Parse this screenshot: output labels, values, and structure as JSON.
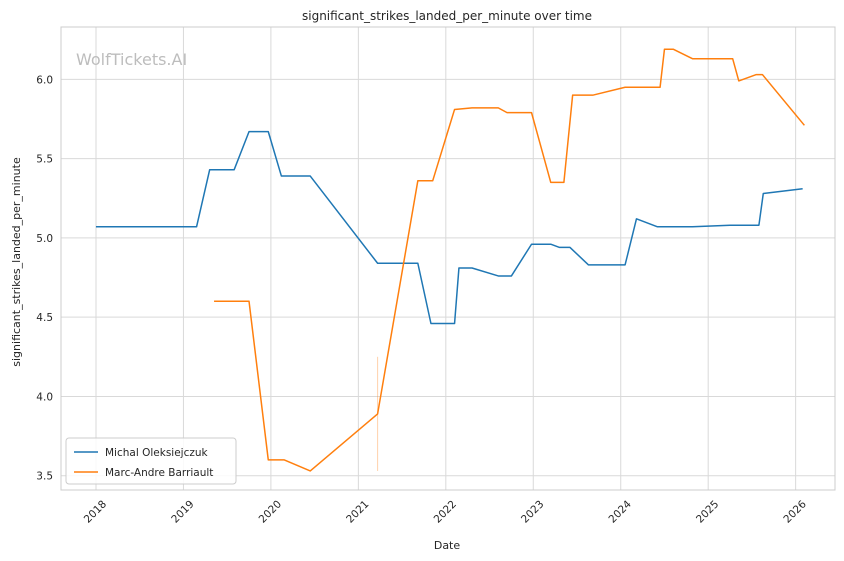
{
  "chart_data": {
    "type": "line",
    "title": "significant_strikes_landed_per_minute over time",
    "xlabel": "Date",
    "ylabel": "significant_strikes_landed_per_minute",
    "watermark": "WolfTickets.AI",
    "xlim": [
      2017.6,
      2026.45
    ],
    "ylim": [
      3.41,
      6.33
    ],
    "xticks": [
      2018,
      2019,
      2020,
      2021,
      2022,
      2023,
      2024,
      2025,
      2026
    ],
    "xtick_labels": [
      "2018",
      "2019",
      "2020",
      "2021",
      "2022",
      "2023",
      "2024",
      "2025",
      "2026"
    ],
    "yticks": [
      3.5,
      4.0,
      4.5,
      5.0,
      5.5,
      6.0
    ],
    "ytick_labels": [
      "3.5",
      "4.0",
      "4.5",
      "5.0",
      "5.5",
      "6.0"
    ],
    "grid": true,
    "legend_position": "lower-left",
    "series": [
      {
        "name": "Michal Oleksiejczuk",
        "color": "#1f77b4",
        "points": [
          [
            2018.0,
            5.07
          ],
          [
            2019.15,
            5.07
          ],
          [
            2019.3,
            5.43
          ],
          [
            2019.58,
            5.43
          ],
          [
            2019.75,
            5.67
          ],
          [
            2019.97,
            5.67
          ],
          [
            2020.12,
            5.39
          ],
          [
            2020.45,
            5.39
          ],
          [
            2021.22,
            4.84
          ],
          [
            2021.68,
            4.84
          ],
          [
            2021.83,
            4.46
          ],
          [
            2022.1,
            4.46
          ],
          [
            2022.15,
            4.81
          ],
          [
            2022.3,
            4.81
          ],
          [
            2022.6,
            4.76
          ],
          [
            2022.75,
            4.76
          ],
          [
            2022.98,
            4.96
          ],
          [
            2023.2,
            4.96
          ],
          [
            2023.3,
            4.94
          ],
          [
            2023.42,
            4.94
          ],
          [
            2023.63,
            4.83
          ],
          [
            2024.05,
            4.83
          ],
          [
            2024.18,
            5.12
          ],
          [
            2024.42,
            5.07
          ],
          [
            2024.82,
            5.07
          ],
          [
            2025.25,
            5.08
          ],
          [
            2025.58,
            5.08
          ],
          [
            2025.63,
            5.28
          ],
          [
            2026.08,
            5.31
          ]
        ]
      },
      {
        "name": "Marc-Andre Barriault",
        "color": "#ff7f0e",
        "points": [
          [
            2019.35,
            4.6
          ],
          [
            2019.75,
            4.6
          ],
          [
            2019.97,
            3.6
          ],
          [
            2020.15,
            3.6
          ],
          [
            2020.45,
            3.53
          ],
          [
            2021.22,
            3.89
          ],
          [
            2021.68,
            5.36
          ],
          [
            2021.85,
            5.36
          ],
          [
            2022.1,
            5.81
          ],
          [
            2022.3,
            5.82
          ],
          [
            2022.6,
            5.82
          ],
          [
            2022.7,
            5.79
          ],
          [
            2022.98,
            5.79
          ],
          [
            2023.2,
            5.35
          ],
          [
            2023.35,
            5.35
          ],
          [
            2023.45,
            5.9
          ],
          [
            2023.68,
            5.9
          ],
          [
            2024.05,
            5.95
          ],
          [
            2024.45,
            5.95
          ],
          [
            2024.5,
            6.19
          ],
          [
            2024.6,
            6.19
          ],
          [
            2024.82,
            6.13
          ],
          [
            2025.28,
            6.13
          ],
          [
            2025.35,
            5.99
          ],
          [
            2025.55,
            6.03
          ],
          [
            2025.62,
            6.03
          ],
          [
            2026.1,
            5.71
          ]
        ]
      }
    ],
    "annotation_segment": {
      "color": "#ff7f0e",
      "x": 2021.22,
      "y_range": [
        3.53,
        4.25
      ]
    }
  }
}
